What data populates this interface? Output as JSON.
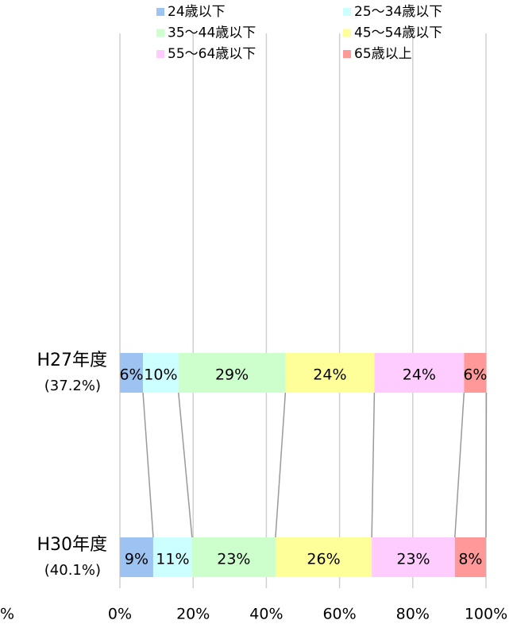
{
  "chart_data": {
    "type": "stacked_bar_horizontal",
    "categories": [
      "H27年度",
      "H30年度"
    ],
    "category_sublabels": [
      "(37.2%)",
      "(40.1%)"
    ],
    "series": [
      {
        "name": "24歳以下",
        "color": "#9dc3f2",
        "values": [
          6.3,
          9.1
        ],
        "value_labels": [
          "6%",
          "9%"
        ]
      },
      {
        "name": "25～34歳以下",
        "color": "#ccffff",
        "values": [
          9.7,
          10.6
        ],
        "value_labels": [
          "10%",
          "11%"
        ]
      },
      {
        "name": "35～44歳以下",
        "color": "#ccffcc",
        "values": [
          29.2,
          22.8
        ],
        "value_labels": [
          "29%",
          "23%"
        ]
      },
      {
        "name": "45～54歳以下",
        "color": "#ffff99",
        "values": [
          24.3,
          26.3
        ],
        "value_labels": [
          "24%",
          "26%"
        ]
      },
      {
        "name": "55～64歳以下",
        "color": "#ffccff",
        "values": [
          24.5,
          22.7
        ],
        "value_labels": [
          "24%",
          "23%"
        ]
      },
      {
        "name": "65歳以上",
        "color": "#ff9999",
        "values": [
          6.1,
          8.5
        ],
        "value_labels": [
          "6%",
          "8%"
        ]
      }
    ],
    "xlim": [
      0,
      100
    ],
    "xticks": [
      {
        "value": 0,
        "label": "0%"
      },
      {
        "value": 20,
        "label": "20%"
      },
      {
        "value": 40,
        "label": "40%"
      },
      {
        "value": 60,
        "label": "60%"
      },
      {
        "value": 80,
        "label": "80%"
      },
      {
        "value": 100,
        "label": "100%"
      }
    ],
    "annotations": [
      "%"
    ],
    "grid": true,
    "legend": "top"
  }
}
